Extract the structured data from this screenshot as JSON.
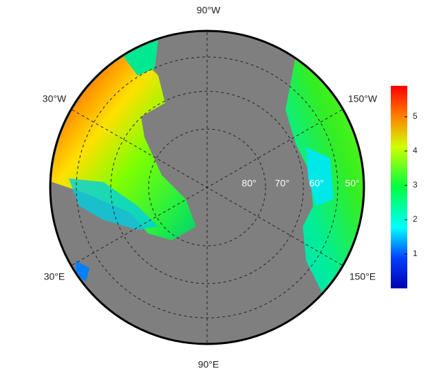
{
  "map": {
    "longitude_labels": [
      "90°W",
      "30°W",
      "150°W",
      "30°E",
      "150°E",
      "90°E"
    ],
    "latitude_labels": [
      "80°",
      "70°",
      "60°",
      "50°"
    ],
    "colorbar": {
      "range": [
        0,
        5.9
      ],
      "ticks": [
        1,
        2,
        3,
        4,
        5
      ]
    }
  }
}
